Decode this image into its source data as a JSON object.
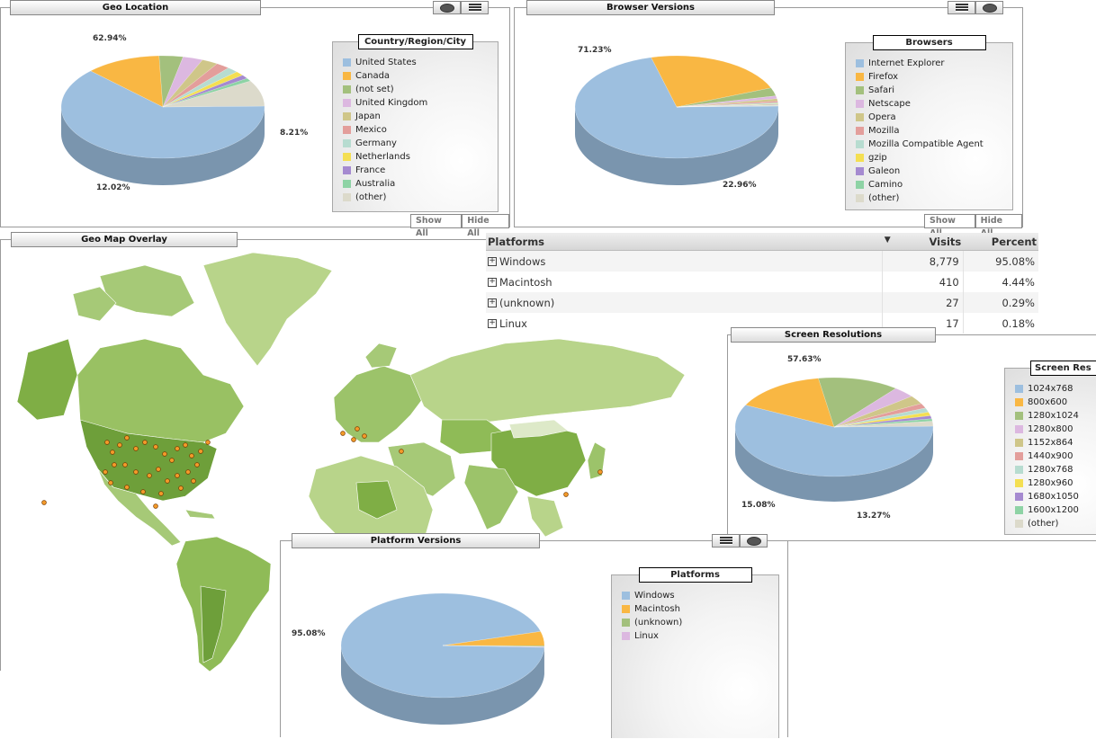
{
  "geo_location": {
    "title": "Geo Location",
    "legend_title": "Country/Region/City",
    "items": [
      {
        "label": "United States",
        "color": "#9dbfdf"
      },
      {
        "label": "Canada",
        "color": "#f9b743"
      },
      {
        "label": "(not set)",
        "color": "#a3c07d"
      },
      {
        "label": "United Kingdom",
        "color": "#dcb8e0"
      },
      {
        "label": "Japan",
        "color": "#cfc689"
      },
      {
        "label": "Mexico",
        "color": "#e39e9b"
      },
      {
        "label": "Germany",
        "color": "#b7dcd0"
      },
      {
        "label": "Netherlands",
        "color": "#f4df52"
      },
      {
        "label": "France",
        "color": "#a58ad0"
      },
      {
        "label": "Australia",
        "color": "#8ed3a5"
      },
      {
        "label": "(other)",
        "color": "#dcdacb"
      }
    ],
    "labels": {
      "a": "62.94%",
      "b": "12.02%",
      "c": "8.21%"
    },
    "show_all": "Show All",
    "hide_all": "Hide All"
  },
  "browser_versions": {
    "title": "Browser Versions",
    "legend_title": "Browsers",
    "items": [
      {
        "label": "Internet Explorer",
        "color": "#9dbfdf"
      },
      {
        "label": "Firefox",
        "color": "#f9b743"
      },
      {
        "label": "Safari",
        "color": "#a3c07d"
      },
      {
        "label": "Netscape",
        "color": "#dcb8e0"
      },
      {
        "label": "Opera",
        "color": "#cfc689"
      },
      {
        "label": "Mozilla",
        "color": "#e39e9b"
      },
      {
        "label": "Mozilla Compatible Agent",
        "color": "#b7dcd0"
      },
      {
        "label": "gzip",
        "color": "#f4df52"
      },
      {
        "label": "Galeon",
        "color": "#a58ad0"
      },
      {
        "label": "Camino",
        "color": "#8ed3a5"
      },
      {
        "label": "(other)",
        "color": "#dcdacb"
      }
    ],
    "labels": {
      "a": "71.23%",
      "b": "22.96%"
    },
    "show_all": "Show All",
    "hide_all": "Hide All"
  },
  "geo_map": {
    "title": "Geo Map Overlay"
  },
  "platforms_table": {
    "headers": {
      "name": "Platforms",
      "visits": "Visits",
      "percent": "Percent"
    },
    "rows": [
      {
        "name": "Windows",
        "visits": "8,779",
        "percent": "95.08%"
      },
      {
        "name": "Macintosh",
        "visits": "410",
        "percent": "4.44%"
      },
      {
        "name": "(unknown)",
        "visits": "27",
        "percent": "0.29%"
      },
      {
        "name": "Linux",
        "visits": "17",
        "percent": "0.18%"
      }
    ]
  },
  "screen_resolutions": {
    "title": "Screen Resolutions",
    "legend_title": "Screen Res",
    "items": [
      {
        "label": "1024x768",
        "color": "#9dbfdf"
      },
      {
        "label": "800x600",
        "color": "#f9b743"
      },
      {
        "label": "1280x1024",
        "color": "#a3c07d"
      },
      {
        "label": "1280x800",
        "color": "#dcb8e0"
      },
      {
        "label": "1152x864",
        "color": "#cfc689"
      },
      {
        "label": "1440x900",
        "color": "#e39e9b"
      },
      {
        "label": "1280x768",
        "color": "#b7dcd0"
      },
      {
        "label": "1280x960",
        "color": "#f4df52"
      },
      {
        "label": "1680x1050",
        "color": "#a58ad0"
      },
      {
        "label": "1600x1200",
        "color": "#8ed3a5"
      },
      {
        "label": "(other)",
        "color": "#dcdacb"
      }
    ],
    "labels": {
      "a": "57.63%",
      "b": "15.08%",
      "c": "13.27%"
    }
  },
  "platform_versions": {
    "title": "Platform Versions",
    "legend_title": "Platforms",
    "items": [
      {
        "label": "Windows",
        "color": "#9dbfdf"
      },
      {
        "label": "Macintosh",
        "color": "#f9b743"
      },
      {
        "label": "(unknown)",
        "color": "#a3c07d"
      },
      {
        "label": "Linux",
        "color": "#dcb8e0"
      }
    ],
    "labels": {
      "a": "95.08%"
    }
  },
  "chart_data": [
    {
      "type": "pie",
      "title": "Geo Location",
      "categories": [
        "United States",
        "Canada",
        "(not set)",
        "United Kingdom",
        "Japan",
        "Mexico",
        "Germany",
        "Netherlands",
        "France",
        "Australia",
        "(other)"
      ],
      "values": [
        62.94,
        12.02,
        3.8,
        3.2,
        2.6,
        2.2,
        1.8,
        1.4,
        1.2,
        1.0,
        8.21
      ]
    },
    {
      "type": "pie",
      "title": "Browser Versions",
      "categories": [
        "Internet Explorer",
        "Firefox",
        "Safari",
        "Netscape",
        "Opera",
        "Mozilla",
        "Mozilla Compatible Agent",
        "gzip",
        "Galeon",
        "Camino",
        "(other)"
      ],
      "values": [
        71.23,
        22.96,
        2.6,
        0.9,
        0.7,
        0.5,
        0.4,
        0.2,
        0.2,
        0.1,
        0.2
      ]
    },
    {
      "type": "pie",
      "title": "Screen Resolutions",
      "categories": [
        "1024x768",
        "800x600",
        "1280x1024",
        "1280x800",
        "1152x864",
        "1440x900",
        "1280x768",
        "1280x960",
        "1680x1050",
        "1600x1200",
        "(other)"
      ],
      "values": [
        57.63,
        15.08,
        13.27,
        3.6,
        2.8,
        1.6,
        1.4,
        1.2,
        1.0,
        0.8,
        1.6
      ]
    },
    {
      "type": "pie",
      "title": "Platform Versions",
      "categories": [
        "Windows",
        "Macintosh",
        "(unknown)",
        "Linux"
      ],
      "values": [
        95.08,
        4.44,
        0.29,
        0.18
      ]
    }
  ]
}
